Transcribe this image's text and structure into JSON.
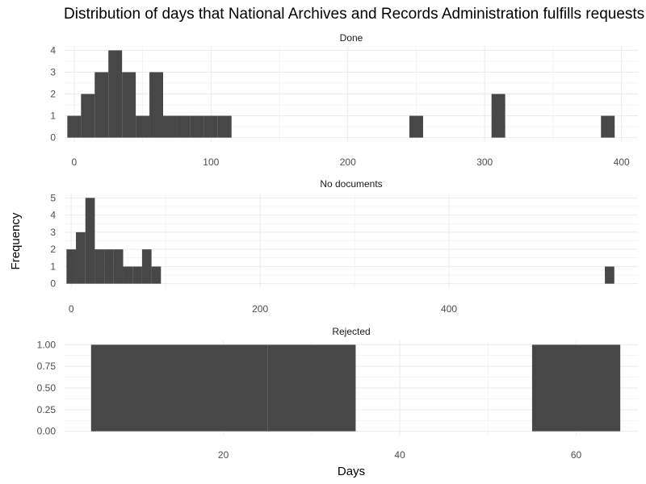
{
  "chart_data": {
    "type": "histogram",
    "title": "Distribution of days that National Archives and Records Administration fulfills requests",
    "xlabel": "Days",
    "ylabel": "Frequency",
    "bar_color": "#474747",
    "grid_color": "#ebebeb",
    "panels": [
      {
        "name": "Done",
        "xlim": [
          -7,
          412
        ],
        "ylim": [
          -0.2,
          4.2
        ],
        "xticks": [
          0,
          100,
          200,
          300,
          400
        ],
        "yticks": [
          0,
          1,
          2,
          3,
          4
        ],
        "ytick_labels": [
          "0",
          "1",
          "2",
          "3",
          "4"
        ],
        "bin_width": 10,
        "bins": [
          {
            "x": 0,
            "count": 1
          },
          {
            "x": 10,
            "count": 2
          },
          {
            "x": 20,
            "count": 3
          },
          {
            "x": 30,
            "count": 4
          },
          {
            "x": 40,
            "count": 3
          },
          {
            "x": 50,
            "count": 1
          },
          {
            "x": 60,
            "count": 3
          },
          {
            "x": 70,
            "count": 1
          },
          {
            "x": 80,
            "count": 1
          },
          {
            "x": 90,
            "count": 1
          },
          {
            "x": 100,
            "count": 1
          },
          {
            "x": 110,
            "count": 1
          },
          {
            "x": 250,
            "count": 1
          },
          {
            "x": 310,
            "count": 2
          },
          {
            "x": 390,
            "count": 1
          }
        ]
      },
      {
        "name": "No documents",
        "xlim": [
          -7,
          600
        ],
        "ylim": [
          -0.25,
          5.25
        ],
        "xticks": [
          0,
          200,
          400
        ],
        "yticks": [
          0,
          1,
          2,
          3,
          4,
          5
        ],
        "ytick_labels": [
          "0",
          "1",
          "2",
          "3",
          "4",
          "5"
        ],
        "bin_width": 10,
        "bins": [
          {
            "x": 0,
            "count": 2
          },
          {
            "x": 10,
            "count": 3
          },
          {
            "x": 20,
            "count": 5
          },
          {
            "x": 30,
            "count": 2
          },
          {
            "x": 40,
            "count": 2
          },
          {
            "x": 50,
            "count": 2
          },
          {
            "x": 60,
            "count": 1
          },
          {
            "x": 70,
            "count": 1
          },
          {
            "x": 80,
            "count": 2
          },
          {
            "x": 90,
            "count": 1
          },
          {
            "x": 570,
            "count": 1
          }
        ]
      },
      {
        "name": "Rejected",
        "xlim": [
          2,
          67
        ],
        "ylim": [
          -0.05,
          1.05
        ],
        "xticks": [
          20,
          40,
          60
        ],
        "yticks": [
          0,
          0.25,
          0.5,
          0.75,
          1
        ],
        "ytick_labels": [
          "0.00",
          "0.25",
          "0.50",
          "0.75",
          "1.00"
        ],
        "bin_width": 10,
        "bins": [
          {
            "x": 10,
            "count": 1
          },
          {
            "x": 20,
            "count": 1
          },
          {
            "x": 30,
            "count": 1
          },
          {
            "x": 60,
            "count": 1
          }
        ]
      }
    ]
  }
}
